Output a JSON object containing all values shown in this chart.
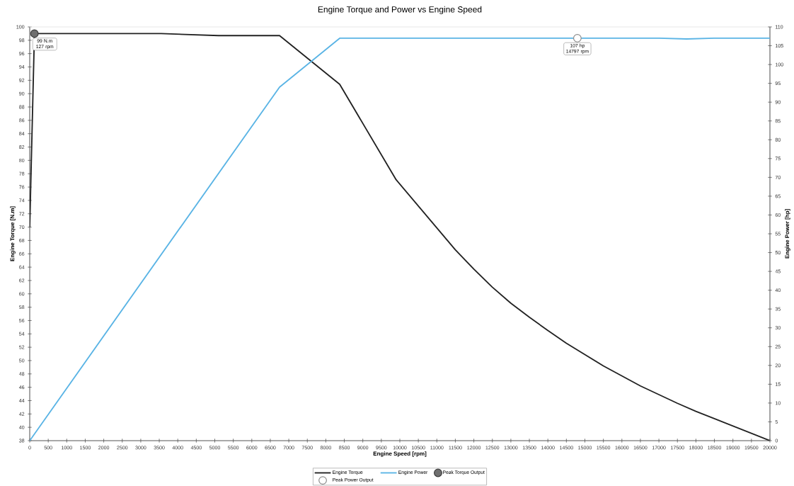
{
  "chart_data": {
    "type": "line",
    "title": "Engine Torque and Power vs Engine Speed",
    "xlabel": "Engine Speed [rpm]",
    "ylabel": "Engine Torque [N.m]",
    "y2label": "Engine Power [hp]",
    "legend": "bottom",
    "xlim": [
      0,
      20000
    ],
    "xticks": [
      0,
      500,
      1000,
      1500,
      2000,
      2500,
      3000,
      3500,
      4000,
      4500,
      5000,
      5500,
      6000,
      6500,
      7000,
      7500,
      8000,
      8500,
      9000,
      9500,
      10000,
      10500,
      11000,
      11500,
      12000,
      12500,
      13000,
      13500,
      14000,
      14500,
      15000,
      15500,
      16000,
      16500,
      17000,
      17500,
      18000,
      18500,
      19000,
      19500,
      20000
    ],
    "ylim": [
      38,
      100
    ],
    "yticks": [
      38,
      40,
      42,
      44,
      46,
      48,
      50,
      52,
      54,
      56,
      58,
      60,
      62,
      64,
      66,
      68,
      70,
      72,
      74,
      76,
      78,
      80,
      82,
      84,
      86,
      88,
      90,
      92,
      94,
      96,
      98,
      100
    ],
    "y2lim": [
      0,
      110
    ],
    "y2ticks": [
      0,
      5,
      10,
      15,
      20,
      25,
      30,
      35,
      40,
      45,
      50,
      55,
      60,
      65,
      70,
      75,
      80,
      85,
      90,
      95,
      100,
      105,
      110
    ],
    "series": [
      {
        "name": "Engine Torque",
        "color": "#222222",
        "x": [
          0,
          127,
          3550,
          5100,
          6750,
          8375,
          9900,
          11500,
          12000,
          12500,
          13000,
          13500,
          14000,
          14500,
          15000,
          15500,
          16000,
          16500,
          17000,
          17500,
          18000,
          18500,
          19000,
          19500,
          20000
        ],
        "values": [
          70,
          99,
          99,
          98.7,
          98.7,
          91.4,
          77.1,
          66.6,
          63.7,
          61.0,
          58.6,
          56.5,
          54.5,
          52.6,
          50.9,
          49.2,
          47.7,
          46.2,
          44.9,
          43.6,
          42.4,
          41.3,
          40.2,
          39.1,
          38
        ]
      },
      {
        "name": "Engine Power",
        "color": "#5ab4e5",
        "axis": "y2",
        "x": [
          0,
          6750,
          8375,
          10000,
          12000,
          14797,
          17000,
          17750,
          18500,
          20000
        ],
        "values": [
          0,
          94,
          107,
          107,
          107,
          107,
          107,
          106.8,
          107,
          107
        ]
      },
      {
        "name": "Peak Torque Output",
        "type": "scatter",
        "marker": "circle",
        "color": "#6f6f6f",
        "x": [
          127
        ],
        "values": [
          99
        ],
        "value_labels": [
          "99 N.m 127 rpm"
        ]
      },
      {
        "name": "Peak Power Output",
        "type": "scatter",
        "marker": "circle",
        "color": "#ffffff",
        "axis": "y2",
        "x": [
          14797
        ],
        "values": [
          107
        ],
        "value_labels": [
          "107 hp 14797 rpm"
        ]
      }
    ]
  }
}
